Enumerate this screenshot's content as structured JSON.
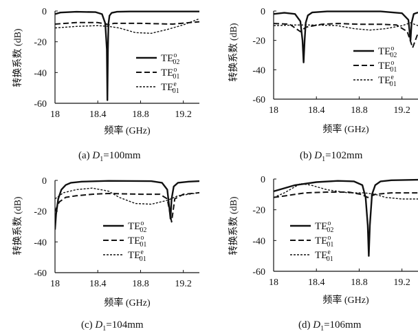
{
  "series_style": {
    "TE02o": {
      "dash": "",
      "width": 2.4
    },
    "TE01o": {
      "dash": "8 4",
      "width": 2.0
    },
    "TE01e": {
      "dash": "3 2",
      "width": 1.4
    }
  },
  "chart_data": [
    {
      "type": "line",
      "xlabel": "频率 (GHz)",
      "ylabel": "转换系数 (dB)",
      "xlim": [
        18.0,
        19.35
      ],
      "ylim": [
        -60,
        0
      ],
      "xticks": [
        {
          "value": 18.0,
          "label": "18"
        },
        {
          "value": 18.4,
          "label": "18.4"
        },
        {
          "value": 18.8,
          "label": "18.8"
        },
        {
          "value": 19.2,
          "label": "19.2"
        }
      ],
      "yticks": [
        {
          "value": 0,
          "label": "0"
        },
        {
          "value": -20,
          "label": "-20"
        },
        {
          "value": -40,
          "label": "-40"
        },
        {
          "value": -60,
          "label": "-60"
        }
      ],
      "legend": [
        {
          "key": "TE02o",
          "label": "TE",
          "sup": "o",
          "sub": "02"
        },
        {
          "key": "TE01o",
          "label": "TE",
          "sup": "o",
          "sub": "01"
        },
        {
          "key": "TE01e",
          "label": "TE",
          "sup": "e",
          "sub": "01"
        }
      ],
      "caption": {
        "prefix": "(a)",
        "var": "D",
        "sub": "1",
        "value": "=100mm"
      },
      "series": [
        {
          "key": "TE02o",
          "x": [
            18.0,
            18.05,
            18.2,
            18.38,
            18.44,
            18.47,
            18.485,
            18.49,
            18.495,
            18.5,
            18.51,
            18.53,
            18.58,
            18.7,
            19.0,
            19.35
          ],
          "values": [
            -2,
            -1,
            -0.5,
            -0.7,
            -2,
            -8,
            -25,
            -58,
            -25,
            -8,
            -3,
            -1.2,
            -0.5,
            -0.3,
            -0.3,
            -0.3
          ]
        },
        {
          "key": "TE01o",
          "x": [
            18.0,
            18.2,
            18.4,
            18.48,
            18.5,
            18.55,
            18.8,
            19.1,
            19.35
          ],
          "values": [
            -8.5,
            -7.5,
            -7.5,
            -8.5,
            -9,
            -8,
            -8,
            -8.5,
            -7
          ]
        },
        {
          "key": "TE01e",
          "x": [
            18.0,
            18.2,
            18.4,
            18.5,
            18.6,
            18.75,
            18.9,
            19.05,
            19.2,
            19.35
          ],
          "values": [
            -11,
            -10,
            -9.5,
            -10,
            -11,
            -14,
            -14.5,
            -12,
            -9,
            -5
          ]
        }
      ]
    },
    {
      "type": "line",
      "xlabel": "频率 (GHz)",
      "ylabel": "转换系数 (dB)",
      "xlim": [
        18.0,
        19.35
      ],
      "ylim": [
        -60,
        0
      ],
      "xticks": [
        {
          "value": 18.0,
          "label": "18"
        },
        {
          "value": 18.4,
          "label": "18.4"
        },
        {
          "value": 18.8,
          "label": "18.8"
        },
        {
          "value": 19.2,
          "label": "19.2"
        }
      ],
      "yticks": [
        {
          "value": 0,
          "label": "0"
        },
        {
          "value": -20,
          "label": "-20"
        },
        {
          "value": -40,
          "label": "-40"
        },
        {
          "value": -60,
          "label": "-60"
        }
      ],
      "legend": [
        {
          "key": "TE02o",
          "label": "TE",
          "sup": "o",
          "sub": "02"
        },
        {
          "key": "TE01o",
          "label": "TE",
          "sup": "o",
          "sub": "01"
        },
        {
          "key": "TE01e",
          "label": "TE",
          "sup": "e",
          "sub": "01"
        }
      ],
      "caption": {
        "prefix": "(b)",
        "var": "D",
        "sub": "1",
        "value": "=102mm"
      },
      "series": [
        {
          "key": "TE02o",
          "x": [
            18.0,
            18.1,
            18.2,
            18.25,
            18.27,
            18.28,
            18.29,
            18.3,
            18.32,
            18.36,
            18.5,
            19.0,
            19.2,
            19.26,
            19.28,
            19.29,
            19.31,
            19.35
          ],
          "values": [
            -2,
            -1.2,
            -2,
            -7,
            -20,
            -35,
            -20,
            -8,
            -3,
            -1,
            -0.3,
            -0.3,
            -1.5,
            -6,
            -20,
            -8,
            -2,
            -1
          ]
        },
        {
          "key": "TE01o",
          "x": [
            18.0,
            18.15,
            18.25,
            18.3,
            18.45,
            18.6,
            18.8,
            19.0,
            19.15,
            19.25,
            19.3,
            19.35
          ],
          "values": [
            -8.5,
            -9,
            -14,
            -11,
            -9,
            -8.5,
            -9,
            -9,
            -9.5,
            -14,
            -25,
            -15
          ]
        },
        {
          "key": "TE01e",
          "x": [
            18.0,
            18.2,
            18.4,
            18.6,
            18.75,
            18.9,
            19.05,
            19.2,
            19.28,
            19.35
          ],
          "values": [
            -10,
            -9.5,
            -9.5,
            -10,
            -12,
            -13,
            -12,
            -10,
            -8,
            -10
          ]
        }
      ]
    },
    {
      "type": "line",
      "xlabel": "频率 (GHz)",
      "ylabel": "转换系数 (dB)",
      "xlim": [
        18.0,
        19.35
      ],
      "ylim": [
        -60,
        0
      ],
      "xticks": [
        {
          "value": 18.0,
          "label": "18"
        },
        {
          "value": 18.4,
          "label": "18.4"
        },
        {
          "value": 18.8,
          "label": "18.8"
        },
        {
          "value": 19.2,
          "label": "19.2"
        }
      ],
      "yticks": [
        {
          "value": 0,
          "label": "0"
        },
        {
          "value": -20,
          "label": "-20"
        },
        {
          "value": -40,
          "label": "-40"
        },
        {
          "value": -60,
          "label": "-60"
        }
      ],
      "legend": [
        {
          "key": "TE02o",
          "label": "TE",
          "sup": "o",
          "sub": "02"
        },
        {
          "key": "TE01o",
          "label": "TE",
          "sup": "o",
          "sub": "01"
        },
        {
          "key": "TE01e",
          "label": "TE",
          "sup": "e",
          "sub": "01"
        }
      ],
      "caption": {
        "prefix": "(c)",
        "var": "D",
        "sub": "1",
        "value": "=104mm"
      },
      "series": [
        {
          "key": "TE02o",
          "x": [
            18.0,
            18.01,
            18.03,
            18.06,
            18.1,
            18.15,
            18.25,
            18.5,
            18.9,
            19.0,
            19.05,
            19.07,
            19.08,
            19.09,
            19.11,
            19.15,
            19.25,
            19.35
          ],
          "values": [
            -32,
            -22,
            -12,
            -6,
            -3,
            -1.5,
            -0.8,
            -0.3,
            -0.5,
            -1.5,
            -6,
            -18,
            -25,
            -12,
            -4,
            -1.5,
            -0.8,
            -0.5
          ]
        },
        {
          "key": "TE01o",
          "x": [
            18.0,
            18.04,
            18.1,
            18.2,
            18.35,
            18.5,
            18.8,
            18.98,
            19.05,
            19.09,
            19.12,
            19.2,
            19.35
          ],
          "values": [
            -20,
            -14,
            -11,
            -10,
            -9,
            -8.5,
            -9,
            -9,
            -12,
            -27,
            -12,
            -9,
            -8
          ]
        },
        {
          "key": "TE01e",
          "x": [
            18.0,
            18.08,
            18.2,
            18.35,
            18.5,
            18.6,
            18.75,
            18.9,
            19.05,
            19.15,
            19.35
          ],
          "values": [
            -12,
            -8,
            -6,
            -5,
            -7,
            -11,
            -15,
            -15.5,
            -13,
            -10,
            -8
          ]
        }
      ]
    },
    {
      "type": "line",
      "xlabel": "频率 (GHz)",
      "ylabel": "转换系数 (dB)",
      "xlim": [
        18.0,
        19.35
      ],
      "ylim": [
        -60,
        0
      ],
      "xticks": [
        {
          "value": 18.0,
          "label": "18"
        },
        {
          "value": 18.4,
          "label": "18.4"
        },
        {
          "value": 18.8,
          "label": "18.8"
        },
        {
          "value": 19.2,
          "label": "19.2"
        }
      ],
      "yticks": [
        {
          "value": 0,
          "label": "0"
        },
        {
          "value": -20,
          "label": "-20"
        },
        {
          "value": -40,
          "label": "-40"
        },
        {
          "value": -60,
          "label": "-60"
        }
      ],
      "legend": [
        {
          "key": "TE02o",
          "label": "TE",
          "sup": "o",
          "sub": "02"
        },
        {
          "key": "TE01o",
          "label": "TE",
          "sup": "o",
          "sub": "01"
        },
        {
          "key": "TE01e",
          "label": "TE",
          "sup": "e",
          "sub": "01"
        }
      ],
      "caption": {
        "prefix": "(d)",
        "var": "D",
        "sub": "1",
        "value": "=106mm"
      },
      "series": [
        {
          "key": "TE02o",
          "x": [
            18.0,
            18.1,
            18.2,
            18.4,
            18.6,
            18.75,
            18.83,
            18.86,
            18.88,
            18.89,
            18.9,
            18.92,
            18.95,
            19.0,
            19.1,
            19.35
          ],
          "values": [
            -8,
            -6,
            -4,
            -2,
            -1.2,
            -1.5,
            -4,
            -12,
            -30,
            -50,
            -30,
            -10,
            -4,
            -1.5,
            -0.8,
            -0.5
          ]
        },
        {
          "key": "TE01o",
          "x": [
            18.0,
            18.1,
            18.2,
            18.3,
            18.5,
            18.7,
            18.82,
            18.88,
            18.95,
            19.1,
            19.35
          ],
          "values": [
            -12,
            -11,
            -10,
            -9,
            -8.5,
            -8.5,
            -10,
            -12,
            -10,
            -9,
            -9
          ]
        },
        {
          "key": "TE01e",
          "x": [
            18.0,
            18.1,
            18.2,
            18.25,
            18.35,
            18.5,
            18.7,
            18.85,
            18.95,
            19.05,
            19.2,
            19.35
          ],
          "values": [
            -12,
            -9,
            -5,
            -3,
            -4,
            -7,
            -9,
            -9,
            -10,
            -12,
            -13,
            -13
          ]
        }
      ]
    }
  ]
}
